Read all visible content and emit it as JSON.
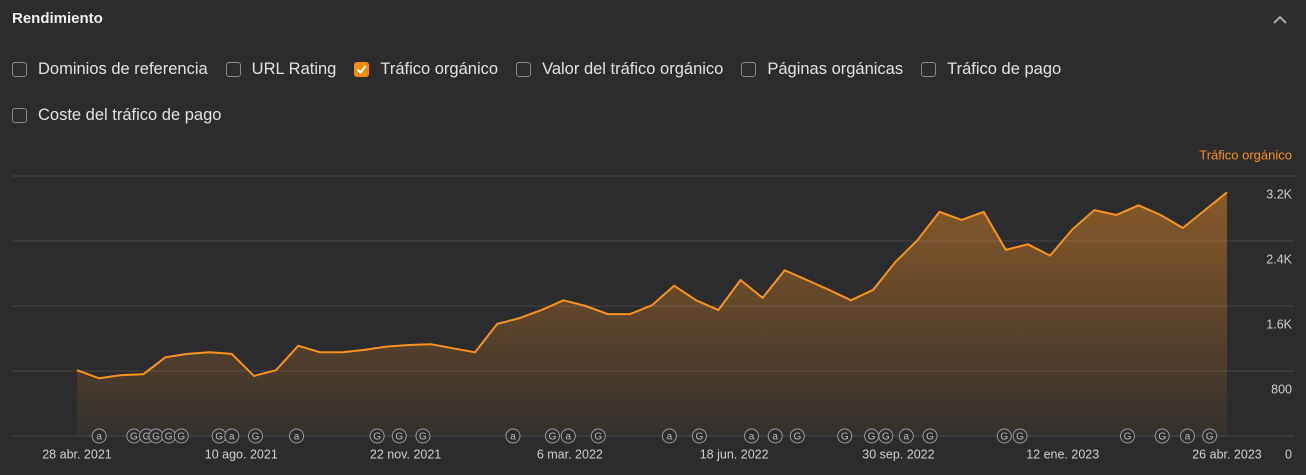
{
  "header": {
    "title": "Rendimiento"
  },
  "checkboxes": [
    {
      "label": "Dominios de referencia",
      "checked": false
    },
    {
      "label": "URL Rating",
      "checked": false
    },
    {
      "label": "Tráfico orgánico",
      "checked": true
    },
    {
      "label": "Valor del tráfico orgánico",
      "checked": false
    },
    {
      "label": "Páginas orgánicas",
      "checked": false
    },
    {
      "label": "Tráfico de pago",
      "checked": false
    },
    {
      "label": "Coste del tráfico de pago",
      "checked": false
    }
  ],
  "chart_data": {
    "type": "area",
    "y_label": "Tráfico orgánico",
    "x": [
      "2021-04-28",
      "2021-05-12",
      "2021-05-26",
      "2021-06-09",
      "2021-06-23",
      "2021-07-07",
      "2021-07-21",
      "2021-08-04",
      "2021-08-18",
      "2021-09-01",
      "2021-09-15",
      "2021-09-29",
      "2021-10-13",
      "2021-10-27",
      "2021-11-10",
      "2021-11-24",
      "2021-12-08",
      "2021-12-22",
      "2022-01-05",
      "2022-01-19",
      "2022-02-02",
      "2022-02-16",
      "2022-03-02",
      "2022-03-16",
      "2022-03-30",
      "2022-04-13",
      "2022-04-27",
      "2022-05-11",
      "2022-05-25",
      "2022-06-08",
      "2022-06-22",
      "2022-07-06",
      "2022-07-20",
      "2022-08-03",
      "2022-08-17",
      "2022-08-31",
      "2022-09-14",
      "2022-09-28",
      "2022-10-12",
      "2022-10-26",
      "2022-11-09",
      "2022-11-23",
      "2022-12-07",
      "2022-12-21",
      "2023-01-04",
      "2023-01-18",
      "2023-02-01",
      "2023-02-15",
      "2023-03-01",
      "2023-03-15",
      "2023-03-29",
      "2023-04-12",
      "2023-04-26"
    ],
    "series": [
      {
        "name": "Tráfico orgánico",
        "color": "#f7931e",
        "values": [
          810,
          710,
          750,
          760,
          970,
          1010,
          1030,
          1010,
          740,
          810,
          1110,
          1030,
          1030,
          1060,
          1100,
          1120,
          1130,
          1080,
          1030,
          1380,
          1450,
          1550,
          1670,
          1600,
          1500,
          1500,
          1610,
          1850,
          1670,
          1550,
          1920,
          1700,
          2040,
          1920,
          1800,
          1670,
          1800,
          2140,
          2410,
          2760,
          2660,
          2760,
          2290,
          2360,
          2220,
          2540,
          2780,
          2720,
          2840,
          2720,
          2560,
          2780,
          3000
        ]
      }
    ],
    "xlim": [
      "2021-04-28",
      "2023-04-26"
    ],
    "xticks": [
      {
        "value": "2021-04-28",
        "label": "28 abr. 2021"
      },
      {
        "value": "2021-08-10",
        "label": "10 ago. 2021"
      },
      {
        "value": "2021-11-22",
        "label": "22 nov. 2021"
      },
      {
        "value": "2022-03-06",
        "label": "6 mar. 2022"
      },
      {
        "value": "2022-06-18",
        "label": "18 jun. 2022"
      },
      {
        "value": "2022-09-30",
        "label": "30 sep. 2022"
      },
      {
        "value": "2023-01-12",
        "label": "12 ene. 2023"
      },
      {
        "value": "2023-04-26",
        "label": "26 abr. 2023"
      }
    ],
    "ylim": [
      0,
      3200
    ],
    "yticks": [
      0,
      800,
      {
        "value": 1600,
        "label": "1.6K"
      },
      {
        "value": 2400,
        "label": "2.4K"
      },
      {
        "value": 3200,
        "label": "3.2K"
      }
    ],
    "grid": true,
    "annotations": [
      {
        "x": "2021-05-12",
        "label": "a"
      },
      {
        "x": "2021-06-03",
        "label": "G"
      },
      {
        "x": "2021-06-11",
        "label": "G"
      },
      {
        "x": "2021-06-17",
        "label": "G"
      },
      {
        "x": "2021-06-25",
        "label": "G"
      },
      {
        "x": "2021-07-03",
        "label": "G"
      },
      {
        "x": "2021-07-27",
        "label": "G"
      },
      {
        "x": "2021-08-04",
        "label": "a"
      },
      {
        "x": "2021-08-19",
        "label": "G"
      },
      {
        "x": "2021-09-14",
        "label": "a"
      },
      {
        "x": "2021-11-04",
        "label": "G"
      },
      {
        "x": "2021-11-18",
        "label": "G"
      },
      {
        "x": "2021-12-03",
        "label": "G"
      },
      {
        "x": "2022-01-29",
        "label": "a"
      },
      {
        "x": "2022-02-23",
        "label": "G"
      },
      {
        "x": "2022-03-05",
        "label": "a"
      },
      {
        "x": "2022-03-24",
        "label": "G"
      },
      {
        "x": "2022-05-08",
        "label": "a"
      },
      {
        "x": "2022-05-27",
        "label": "G"
      },
      {
        "x": "2022-06-29",
        "label": "a"
      },
      {
        "x": "2022-07-14",
        "label": "a"
      },
      {
        "x": "2022-07-28",
        "label": "G"
      },
      {
        "x": "2022-08-27",
        "label": "G"
      },
      {
        "x": "2022-09-13",
        "label": "G"
      },
      {
        "x": "2022-09-22",
        "label": "G"
      },
      {
        "x": "2022-10-05",
        "label": "a"
      },
      {
        "x": "2022-10-20",
        "label": "G"
      },
      {
        "x": "2022-12-06",
        "label": "G"
      },
      {
        "x": "2022-12-16",
        "label": "G"
      },
      {
        "x": "2023-02-22",
        "label": "G"
      },
      {
        "x": "2023-03-16",
        "label": "G"
      },
      {
        "x": "2023-04-01",
        "label": "a"
      },
      {
        "x": "2023-04-15",
        "label": "G"
      }
    ]
  }
}
